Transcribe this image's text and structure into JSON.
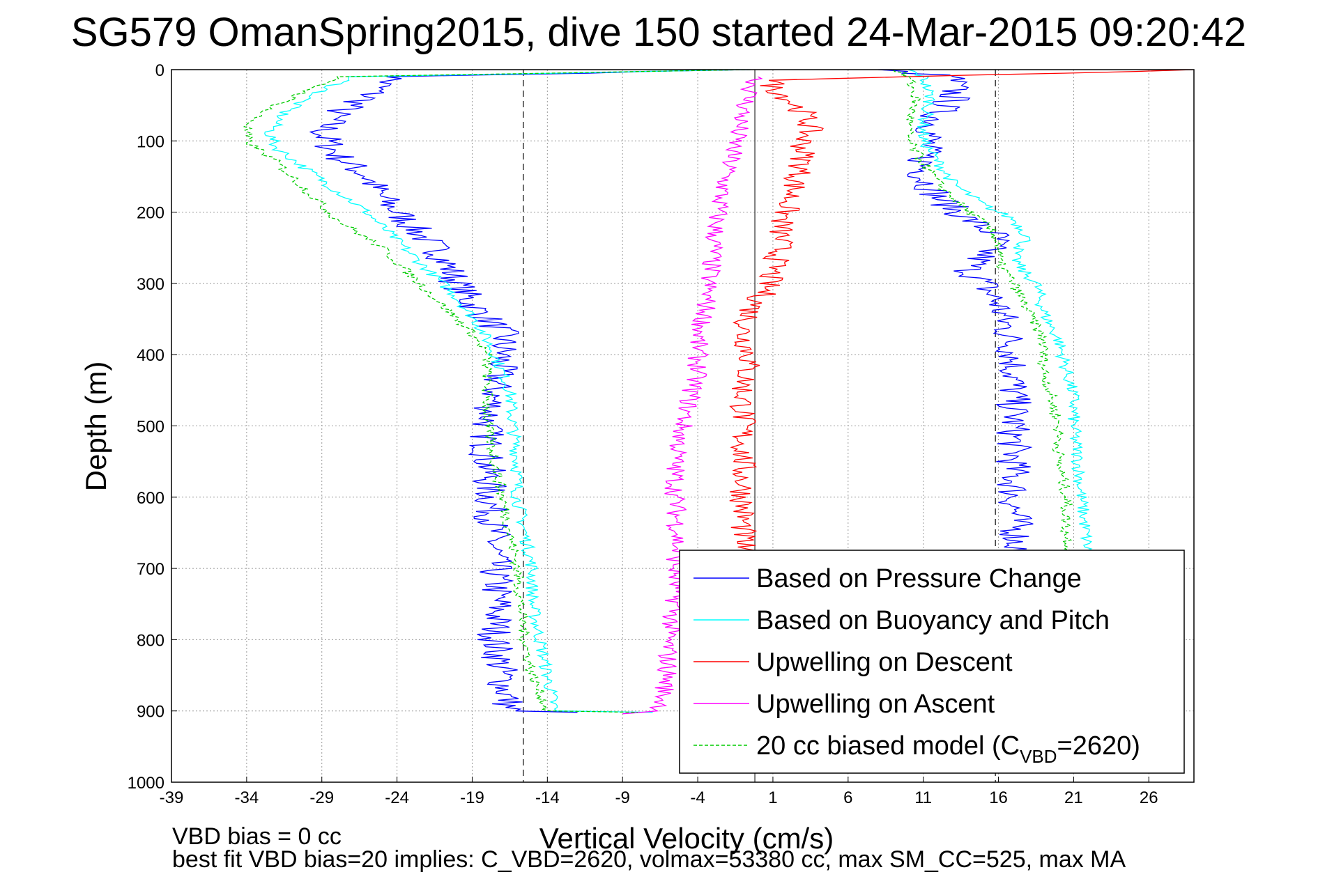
{
  "chart_data": {
    "type": "line",
    "title": "SG579 OmanSpring2015, dive 150 started 24-Mar-2015 09:20:42",
    "xlabel": "Vertical Velocity (cm/s)",
    "ylabel": "Depth (m)",
    "xlim": [
      -39,
      29
    ],
    "ylim": [
      0,
      1000
    ],
    "y_reversed": true,
    "grid": true,
    "xticks": [
      -39,
      -34,
      -29,
      -24,
      -19,
      -14,
      -9,
      -4,
      1,
      6,
      11,
      16,
      21,
      26
    ],
    "yticks": [
      0,
      100,
      200,
      300,
      400,
      500,
      600,
      700,
      800,
      900,
      1000
    ],
    "reference_lines": {
      "dashed_x": [
        -15.6,
        15.8
      ],
      "solid_x": [
        -0.2
      ]
    },
    "legend": {
      "location": "bottom-right",
      "entries": [
        {
          "label": "Based on Pressure Change",
          "color": "#0000ff",
          "style": "solid"
        },
        {
          "label": "Based on Buoyancy and Pitch",
          "color": "#00ffff",
          "style": "solid"
        },
        {
          "label": "Upwelling on Descent",
          "color": "#ff0000",
          "style": "solid"
        },
        {
          "label": "Upwelling on Ascent",
          "color": "#ff00ff",
          "style": "solid"
        },
        {
          "label_main": "20 cc biased model (C",
          "label_sub": "VBD",
          "label_tail": "=2620)",
          "color": "#00cc00",
          "style": "dashed"
        }
      ]
    },
    "series": [
      {
        "name": "Based on Pressure Change",
        "color": "#0000ff",
        "style": "solid",
        "segments": [
          {
            "noise": 1.2,
            "points": [
              [
                -0.5,
                0
              ],
              [
                -24,
                10
              ],
              [
                -25,
                20
              ],
              [
                -26,
                40
              ],
              [
                -28,
                60
              ],
              [
                -29,
                90
              ],
              [
                -28,
                120
              ],
              [
                -26,
                150
              ],
              [
                -25,
                180
              ],
              [
                -23,
                220
              ],
              [
                -21,
                260
              ],
              [
                -20,
                300
              ],
              [
                -19,
                330
              ],
              [
                -17,
                370
              ],
              [
                -17,
                400
              ],
              [
                -17.5,
                450
              ],
              [
                -18,
                500
              ],
              [
                -18,
                550
              ],
              [
                -17.8,
                600
              ],
              [
                -17.6,
                650
              ],
              [
                -17.5,
                700
              ],
              [
                -17.3,
                750
              ],
              [
                -17.5,
                800
              ],
              [
                -17,
                850
              ],
              [
                -16.5,
                900
              ],
              [
                -12,
                902
              ]
            ]
          },
          {
            "noise": 1.2,
            "points": [
              [
                8,
                0
              ],
              [
                13,
                10
              ],
              [
                13,
                20
              ],
              [
                13,
                40
              ],
              [
                12,
                60
              ],
              [
                11.5,
                90
              ],
              [
                11,
                120
              ],
              [
                11,
                150
              ],
              [
                12,
                180
              ],
              [
                14,
                210
              ],
              [
                16,
                235
              ],
              [
                15,
                260
              ],
              [
                14,
                280
              ],
              [
                15,
                300
              ],
              [
                16,
                330
              ],
              [
                16.5,
                360
              ],
              [
                17,
                400
              ],
              [
                17,
                450
              ],
              [
                17,
                500
              ],
              [
                17,
                550
              ],
              [
                17,
                600
              ],
              [
                17.2,
                650
              ],
              [
                17.3,
                700
              ]
            ]
          }
        ]
      },
      {
        "name": "Based on Buoyancy and Pitch",
        "color": "#00ffff",
        "style": "solid",
        "segments": [
          {
            "noise": 0.45,
            "points": [
              [
                -0.5,
                0
              ],
              [
                -27,
                10
              ],
              [
                -28,
                20
              ],
              [
                -30,
                40
              ],
              [
                -31.5,
                60
              ],
              [
                -32.5,
                90
              ],
              [
                -32,
                110
              ],
              [
                -30,
                140
              ],
              [
                -28,
                170
              ],
              [
                -26,
                200
              ],
              [
                -24,
                240
              ],
              [
                -22,
                280
              ],
              [
                -20,
                320
              ],
              [
                -18.5,
                360
              ],
              [
                -17.5,
                400
              ],
              [
                -16.5,
                450
              ],
              [
                -16.3,
                500
              ],
              [
                -16,
                550
              ],
              [
                -16,
                600
              ],
              [
                -15.5,
                650
              ],
              [
                -15,
                700
              ],
              [
                -15,
                750
              ],
              [
                -14.5,
                800
              ],
              [
                -14,
                850
              ],
              [
                -13.5,
                900
              ],
              [
                -7,
                902
              ]
            ]
          },
          {
            "noise": 0.45,
            "points": [
              [
                10,
                0
              ],
              [
                11,
                10
              ],
              [
                11.5,
                40
              ],
              [
                11,
                80
              ],
              [
                11,
                100
              ],
              [
                12,
                130
              ],
              [
                13,
                160
              ],
              [
                15,
                190
              ],
              [
                17,
                210
              ],
              [
                18,
                235
              ],
              [
                17,
                260
              ],
              [
                17.5,
                280
              ],
              [
                18.5,
                300
              ],
              [
                19,
                340
              ],
              [
                20,
                380
              ],
              [
                20.5,
                420
              ],
              [
                21,
                460
              ],
              [
                21,
                500
              ],
              [
                21.3,
                550
              ],
              [
                21.5,
                600
              ],
              [
                21.8,
                650
              ],
              [
                22,
                700
              ]
            ]
          }
        ]
      },
      {
        "name": "Upwelling on Descent",
        "color": "#ff0000",
        "style": "solid",
        "segments": [
          {
            "noise": 0.9,
            "points": [
              [
                29,
                0
              ],
              [
                1,
                15
              ],
              [
                1,
                25
              ],
              [
                2,
                40
              ],
              [
                3,
                60
              ],
              [
                3.5,
                80
              ],
              [
                3,
                100
              ],
              [
                3,
                130
              ],
              [
                2.5,
                160
              ],
              [
                2,
                190
              ],
              [
                1.5,
                220
              ],
              [
                1.5,
                250
              ],
              [
                1,
                280
              ],
              [
                0.5,
                310
              ],
              [
                -0.5,
                340
              ],
              [
                -1,
                370
              ],
              [
                -0.5,
                400
              ],
              [
                -1,
                450
              ],
              [
                -1,
                500
              ],
              [
                -1,
                550
              ],
              [
                -1,
                600
              ],
              [
                -1,
                650
              ],
              [
                -1,
                700
              ]
            ]
          }
        ]
      },
      {
        "name": "Upwelling on Ascent",
        "color": "#ff00ff",
        "style": "solid",
        "segments": [
          {
            "noise": 0.7,
            "points": [
              [
                0,
                10
              ],
              [
                -0.5,
                30
              ],
              [
                -1,
                60
              ],
              [
                -1.5,
                100
              ],
              [
                -2,
                140
              ],
              [
                -2.5,
                180
              ],
              [
                -2.8,
                220
              ],
              [
                -3,
                260
              ],
              [
                -3.3,
                300
              ],
              [
                -3.5,
                340
              ],
              [
                -4,
                380
              ],
              [
                -4,
                420
              ],
              [
                -4.5,
                460
              ],
              [
                -5,
                500
              ],
              [
                -5.5,
                550
              ],
              [
                -5.5,
                600
              ],
              [
                -5.3,
                650
              ],
              [
                -5.5,
                700
              ],
              [
                -5.5,
                750
              ],
              [
                -6,
                800
              ],
              [
                -6,
                850
              ],
              [
                -6.5,
                900
              ],
              [
                -9,
                904
              ]
            ]
          }
        ]
      },
      {
        "name": "20 cc biased model (CVBD=2620)",
        "color": "#00cc00",
        "style": "dashed",
        "segments": [
          {
            "noise": 0.4,
            "points": [
              [
                -0.5,
                0
              ],
              [
                -28,
                10
              ],
              [
                -29,
                20
              ],
              [
                -31,
                40
              ],
              [
                -33,
                60
              ],
              [
                -34,
                80
              ],
              [
                -34,
                100
              ],
              [
                -32,
                130
              ],
              [
                -30,
                170
              ],
              [
                -28,
                210
              ],
              [
                -25,
                250
              ],
              [
                -23,
                290
              ],
              [
                -21,
                330
              ],
              [
                -19,
                370
              ],
              [
                -18,
                400
              ],
              [
                -18,
                450
              ],
              [
                -18,
                500
              ],
              [
                -17.5,
                550
              ],
              [
                -17,
                600
              ],
              [
                -16.5,
                650
              ],
              [
                -16,
                700
              ],
              [
                -15.8,
                750
              ],
              [
                -15.5,
                800
              ],
              [
                -15,
                850
              ],
              [
                -14,
                900
              ],
              [
                -8,
                902
              ]
            ]
          },
          {
            "noise": 0.4,
            "points": [
              [
                9,
                0
              ],
              [
                10,
                10
              ],
              [
                10.5,
                40
              ],
              [
                10,
                80
              ],
              [
                10,
                100
              ],
              [
                11,
                130
              ],
              [
                12,
                160
              ],
              [
                13.5,
                190
              ],
              [
                15,
                215
              ],
              [
                16,
                240
              ],
              [
                16,
                270
              ],
              [
                17,
                300
              ],
              [
                18,
                340
              ],
              [
                19,
                380
              ],
              [
                19,
                420
              ],
              [
                19.5,
                460
              ],
              [
                20,
                500
              ],
              [
                20,
                550
              ],
              [
                20.5,
                600
              ],
              [
                20.5,
                650
              ],
              [
                21,
                700
              ]
            ]
          }
        ]
      }
    ]
  },
  "notes": {
    "line1": "VBD bias = 0 cc",
    "line2": "best fit VBD bias=20 implies: C_VBD=2620, volmax=53380 cc, max SM_CC=525, max MA"
  }
}
